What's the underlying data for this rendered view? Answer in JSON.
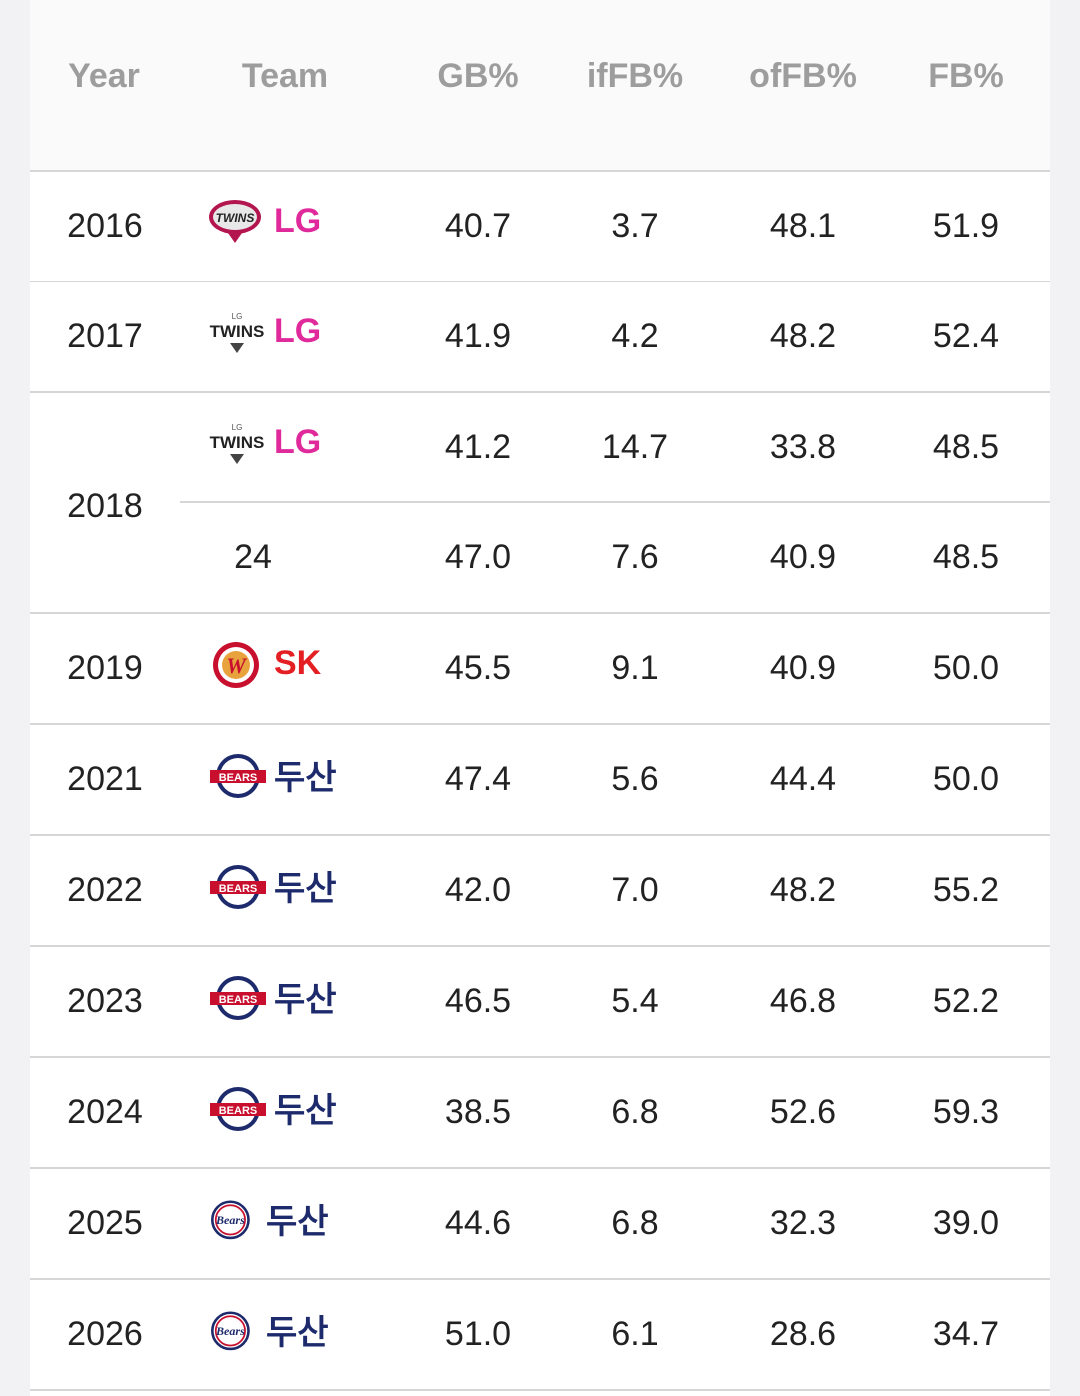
{
  "header": {
    "year": "Year",
    "team": "Team",
    "gb": "GB%",
    "iffb": "ifFB%",
    "offb": "ofFB%",
    "fb": "FB%"
  },
  "rows": [
    {
      "year": "2016",
      "team": "LG",
      "logo": "lg-twins-logo-old",
      "gb": "40.7",
      "iffb": "3.7",
      "offb": "48.1",
      "fb": "51.9"
    },
    {
      "year": "2017",
      "team": "LG",
      "logo": "lg-twins-logo",
      "gb": "41.9",
      "iffb": "4.2",
      "offb": "48.2",
      "fb": "52.4"
    },
    {
      "year": "2018",
      "team": "LG",
      "logo": "lg-twins-logo",
      "gb": "41.2",
      "iffb": "14.7",
      "offb": "33.8",
      "fb": "48.5"
    },
    {
      "year": "",
      "team": "24",
      "logo": "",
      "gb": "47.0",
      "iffb": "7.6",
      "offb": "40.9",
      "fb": "48.5"
    },
    {
      "year": "2019",
      "team": "SK",
      "logo": "sk-wyverns-logo",
      "gb": "45.5",
      "iffb": "9.1",
      "offb": "40.9",
      "fb": "50.0"
    },
    {
      "year": "2021",
      "team": "두산",
      "logo": "doosan-bears-logo",
      "gb": "47.4",
      "iffb": "5.6",
      "offb": "44.4",
      "fb": "50.0"
    },
    {
      "year": "2022",
      "team": "두산",
      "logo": "doosan-bears-logo",
      "gb": "42.0",
      "iffb": "7.0",
      "offb": "48.2",
      "fb": "55.2"
    },
    {
      "year": "2023",
      "team": "두산",
      "logo": "doosan-bears-logo",
      "gb": "46.5",
      "iffb": "5.4",
      "offb": "46.8",
      "fb": "52.2"
    },
    {
      "year": "2024",
      "team": "두산",
      "logo": "doosan-bears-logo",
      "gb": "38.5",
      "iffb": "6.8",
      "offb": "52.6",
      "fb": "59.3"
    },
    {
      "year": "2025",
      "team": "두산",
      "logo": "doosan-bears-logo-new",
      "gb": "44.6",
      "iffb": "6.8",
      "offb": "32.3",
      "fb": "39.0"
    },
    {
      "year": "2026",
      "team": "두산",
      "logo": "doosan-bears-logo-new",
      "gb": "51.0",
      "iffb": "6.1",
      "offb": "28.6",
      "fb": "34.7"
    }
  ],
  "colors": {
    "lg": "#e0299a",
    "sk": "#e41f23",
    "doosan": "#1d2a6b",
    "header_text": "#9d9d9d",
    "divider": "#d6d6d6"
  }
}
